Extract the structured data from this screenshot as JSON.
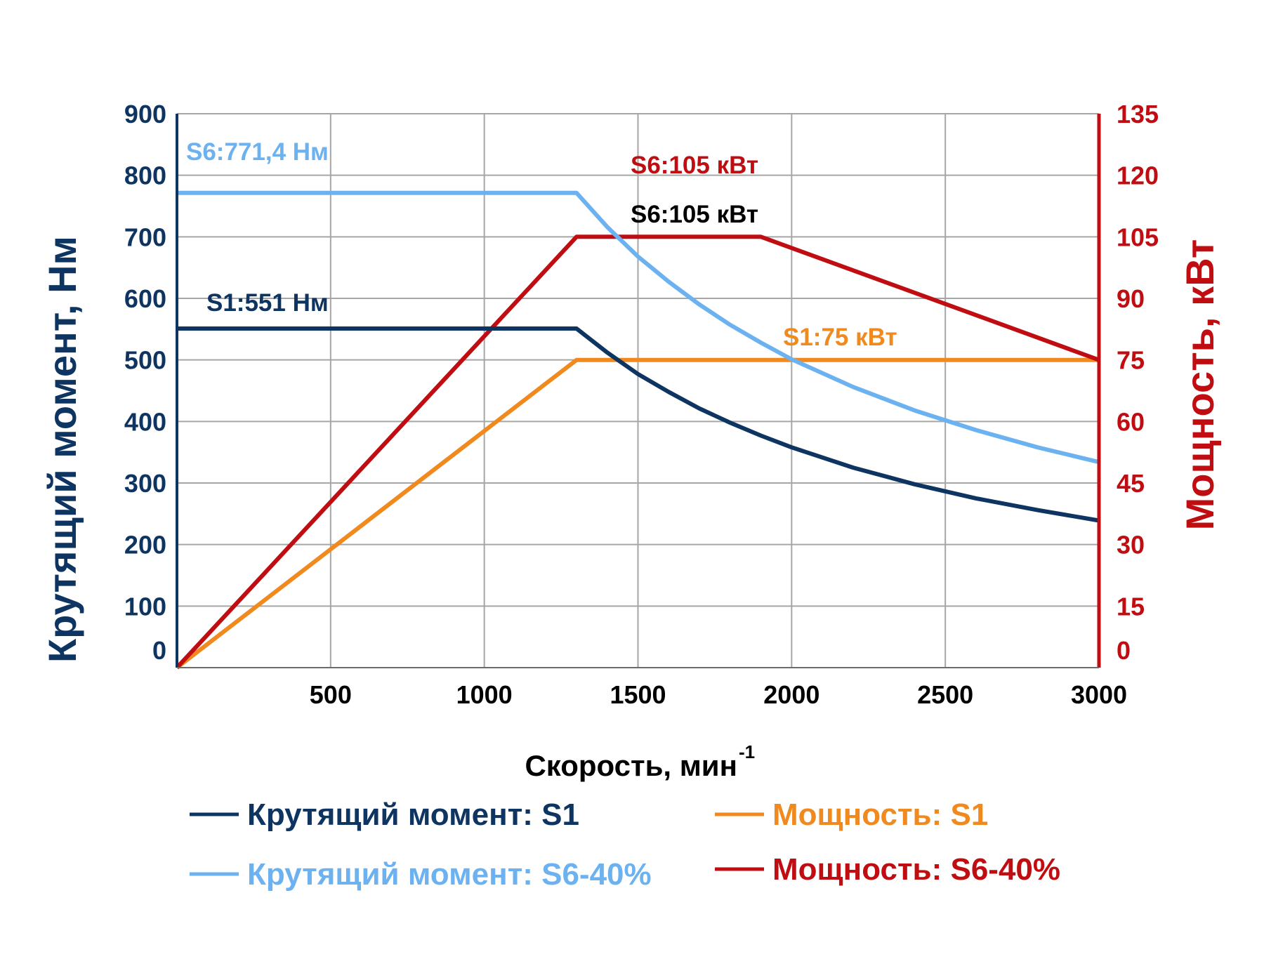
{
  "colors": {
    "torque_s1": "#0e3461",
    "torque_s6": "#6cb2f0",
    "power_s1": "#f08a1e",
    "power_s6": "#c00d12",
    "left_axis": "#0e3461",
    "right_axis": "#c00d12",
    "grid": "#a6a6a6"
  },
  "chart_data": {
    "type": "line",
    "xlabel": "Скорость, мин",
    "xlabel_sup": "-1",
    "ylabel_left": "Крутящий момент, Нм",
    "ylabel_right": "Мощность, кВт",
    "xlim": [
      0,
      3000
    ],
    "ylim_left": [
      0,
      900
    ],
    "ylim_right": [
      0,
      135
    ],
    "grid": true,
    "legend_position": "bottom",
    "x_ticks": [
      "500",
      "1000",
      "1500",
      "2000",
      "2500",
      "3000"
    ],
    "y_left_ticks": [
      "0",
      "100",
      "200",
      "300",
      "400",
      "500",
      "600",
      "700",
      "800",
      "900"
    ],
    "y_right_ticks": [
      "0",
      "15",
      "30",
      "45",
      "60",
      "75",
      "90",
      "105",
      "120",
      "135"
    ],
    "series": [
      {
        "name": "Крутящий момент: S1",
        "axis": "left",
        "color": "#0e3461",
        "points": [
          [
            0,
            551
          ],
          [
            1300,
            551
          ],
          [
            1400,
            512
          ],
          [
            1500,
            477
          ],
          [
            1600,
            448
          ],
          [
            1700,
            421
          ],
          [
            1800,
            398
          ],
          [
            1900,
            377
          ],
          [
            2000,
            358
          ],
          [
            2200,
            325
          ],
          [
            2400,
            298
          ],
          [
            2600,
            275
          ],
          [
            2800,
            256
          ],
          [
            3000,
            239
          ]
        ]
      },
      {
        "name": "Крутящий момент: S6-40%",
        "axis": "left",
        "color": "#6cb2f0",
        "points": [
          [
            0,
            771.4
          ],
          [
            1300,
            771.4
          ],
          [
            1400,
            716
          ],
          [
            1500,
            668
          ],
          [
            1600,
            627
          ],
          [
            1700,
            590
          ],
          [
            1800,
            557
          ],
          [
            1900,
            528
          ],
          [
            2000,
            501
          ],
          [
            2200,
            456
          ],
          [
            2400,
            418
          ],
          [
            2600,
            386
          ],
          [
            2800,
            358
          ],
          [
            3000,
            334
          ]
        ]
      },
      {
        "name": "Мощность: S1",
        "axis": "right",
        "color": "#f08a1e",
        "points": [
          [
            0,
            0
          ],
          [
            1300,
            75
          ],
          [
            2580,
            75
          ],
          [
            3000,
            75
          ]
        ]
      },
      {
        "name": "Мощность: S6-40%",
        "axis": "right",
        "color": "#c00d12",
        "points": [
          [
            0,
            0
          ],
          [
            1300,
            105
          ],
          [
            1900,
            105
          ],
          [
            3000,
            75
          ]
        ]
      }
    ],
    "annotations": [
      {
        "text": "S6:771,4 Нм",
        "color": "#6cb2f0"
      },
      {
        "text": "S6:105 кВт",
        "color": "#c00d12"
      },
      {
        "text": "S6:105 кВт",
        "color": "#000000"
      },
      {
        "text": "S1:551 Нм",
        "color": "#0e3461"
      },
      {
        "text": "S1:75 кВт",
        "color": "#f08a1e"
      }
    ]
  }
}
